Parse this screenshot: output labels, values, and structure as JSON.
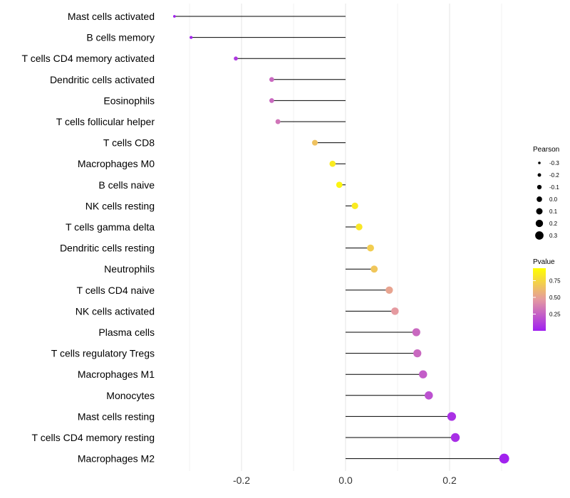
{
  "chart_data": {
    "type": "lollipop",
    "title": "",
    "xlabel": "",
    "ylabel": "",
    "xlim": [
      -0.34,
      0.31
    ],
    "x_ticks": [
      -0.2,
      0.0,
      0.2
    ],
    "x_tick_labels": [
      "-0.2",
      "0.0",
      "0.2"
    ],
    "grid": true,
    "categories": [
      "Mast cells activated",
      "B cells memory",
      "T cells CD4 memory activated",
      "Dendritic cells activated",
      "Eosinophils",
      "T cells follicular helper",
      "T cells CD8",
      "Macrophages M0",
      "B cells naive",
      "NK cells resting",
      "T cells gamma delta",
      "Dendritic cells resting",
      "Neutrophils",
      "T cells CD4 naive",
      "NK cells activated",
      "Plasma cells",
      "T cells regulatory  Tregs ",
      "Macrophages M1",
      "Monocytes",
      "Mast cells resting",
      "T cells CD4 memory resting",
      "Macrophages M2"
    ],
    "pearson": [
      -0.329,
      -0.297,
      -0.211,
      -0.142,
      -0.142,
      -0.13,
      -0.059,
      -0.025,
      -0.012,
      0.018,
      0.026,
      0.048,
      0.055,
      0.084,
      0.095,
      0.136,
      0.138,
      0.149,
      0.16,
      0.204,
      0.211,
      0.305
    ],
    "pvalue": [
      0.01,
      0.02,
      0.1,
      0.3,
      0.3,
      0.35,
      0.7,
      0.9,
      0.95,
      0.9,
      0.88,
      0.75,
      0.72,
      0.55,
      0.5,
      0.3,
      0.3,
      0.25,
      0.2,
      0.07,
      0.06,
      0.01
    ],
    "legend_size": {
      "title": "Pearson",
      "values": [
        -0.3,
        -0.2,
        -0.1,
        0.0,
        0.1,
        0.2,
        0.3
      ],
      "labels": [
        "-0.3",
        "-0.2",
        "-0.1",
        "0.0",
        "0.1",
        "0.2",
        "0.3"
      ]
    },
    "legend_color": {
      "title": "Pvalue",
      "ticks": [
        0.25,
        0.5,
        0.75
      ],
      "labels": [
        "0.25",
        "0.50",
        "0.75"
      ],
      "colors": [
        "#A020F0",
        "#E59AA0",
        "#FFFF00"
      ]
    },
    "legend_placement": "right"
  }
}
